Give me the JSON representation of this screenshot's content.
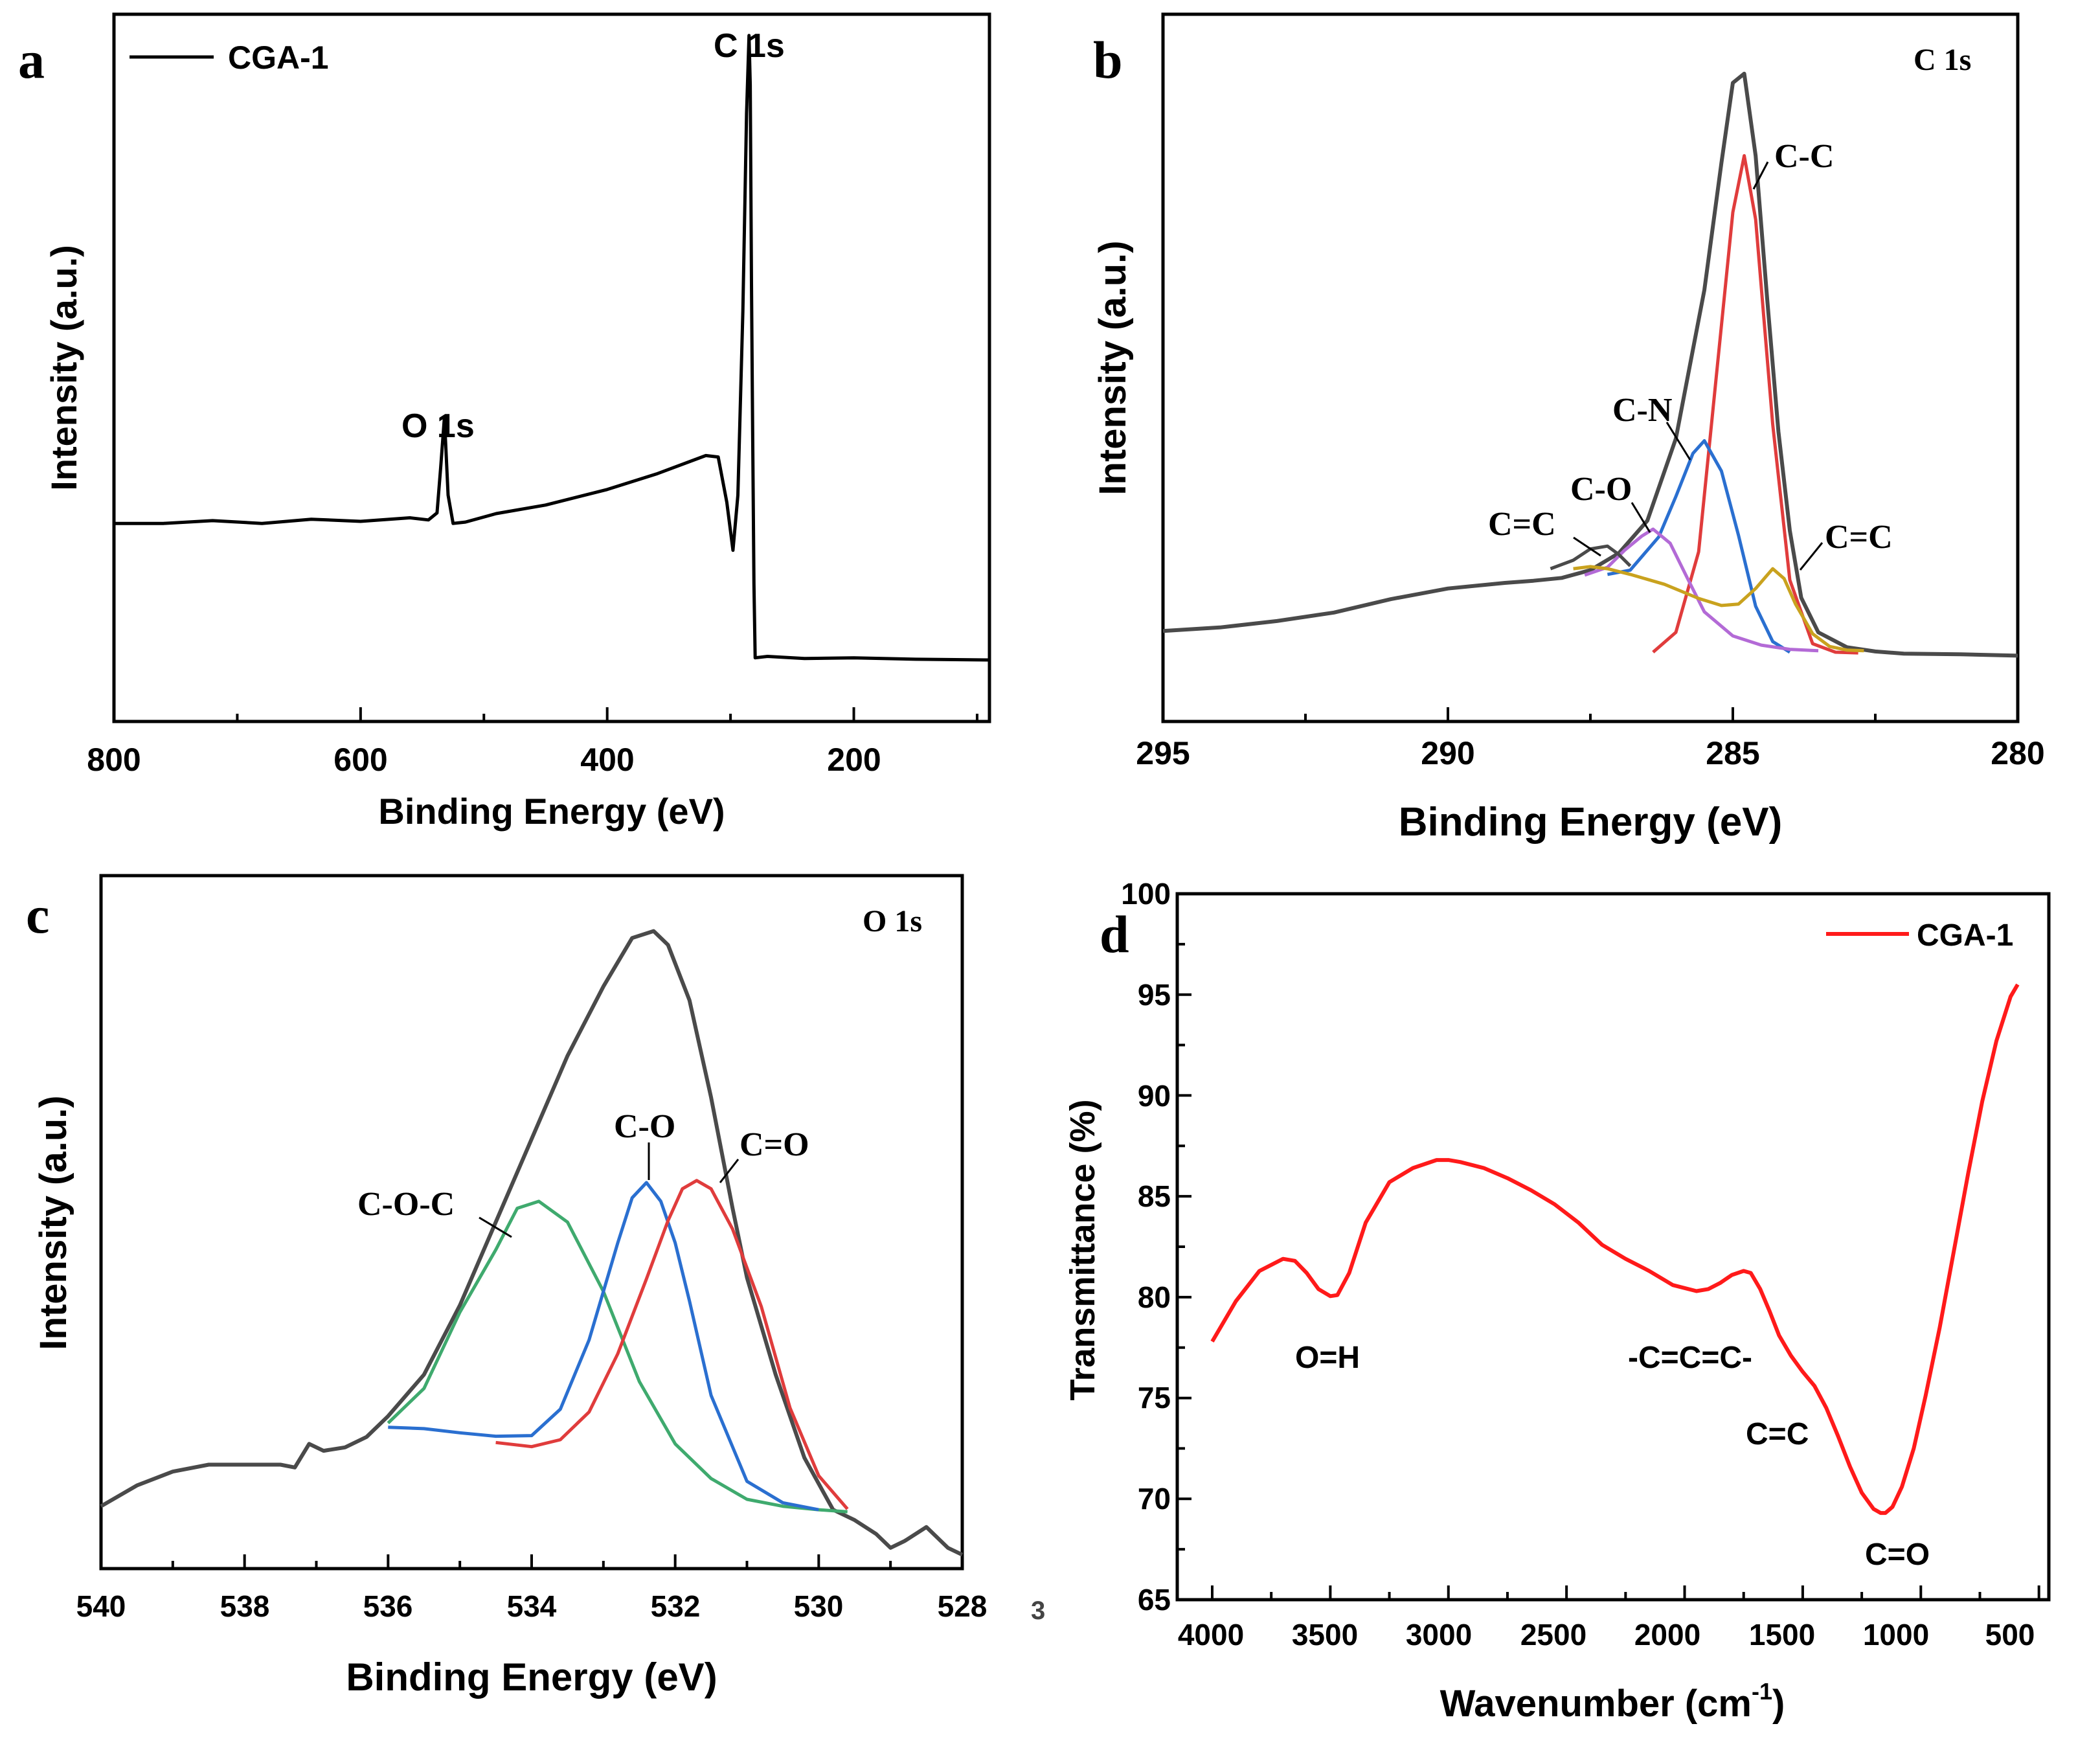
{
  "colors": {
    "axis": "#000000",
    "envelope": "#4a4a4a",
    "red": "#e03c3c",
    "blue": "#2a6fd0",
    "purple": "#b36ad6",
    "gold": "#c9a21e",
    "green": "#3faa6e",
    "ftir": "#ff1a1a"
  },
  "chart_data": [
    {
      "panel": "a",
      "type": "line",
      "title": "",
      "xlabel": "Binding Energy (eV)",
      "ylabel": "Intensity (a.u.)",
      "xlim": [
        800,
        90
      ],
      "ylim": [
        0,
        100
      ],
      "xticks": [
        800,
        600,
        400,
        200
      ],
      "xtick_labels": [
        "800",
        "600",
        "400",
        "200"
      ],
      "legend": "CGA-1",
      "annotations": [
        {
          "text": "O 1s",
          "x": 532
        },
        {
          "text": "C 1s",
          "x": 284
        }
      ],
      "series": [
        {
          "name": "CGA-1",
          "color_key": "axis",
          "x": [
            800,
            760,
            720,
            680,
            640,
            600,
            560,
            545,
            538,
            535,
            532,
            529,
            525,
            515,
            490,
            450,
            400,
            360,
            320,
            310,
            303,
            298,
            294,
            290,
            287,
            285,
            284,
            283,
            282,
            281,
            280,
            270,
            240,
            200,
            150,
            90
          ],
          "y": [
            28,
            28,
            28.4,
            28,
            28.6,
            28.3,
            28.8,
            28.5,
            29.5,
            36,
            43,
            32,
            28,
            28.2,
            29.4,
            30.6,
            32.8,
            35,
            37.6,
            37.4,
            31,
            24.2,
            32,
            58,
            86,
            97,
            90,
            62,
            40,
            19.5,
            9,
            9.2,
            8.9,
            9,
            8.8,
            8.7
          ]
        }
      ]
    },
    {
      "panel": "b",
      "type": "line",
      "title": "C 1s",
      "xlabel": "Binding Energy (eV)",
      "ylabel": "Intensity (a.u.)",
      "xlim": [
        295,
        280
      ],
      "ylim": [
        0,
        100
      ],
      "xticks": [
        295,
        290,
        285,
        280
      ],
      "xtick_labels": [
        "295",
        "290",
        "285",
        "280"
      ],
      "annotations": [
        {
          "text": "C-C",
          "x": 284.8
        },
        {
          "text": "C-N",
          "x": 285.5
        },
        {
          "text": "C-O",
          "x": 286.4
        },
        {
          "text": "C=C",
          "x": 287.5
        },
        {
          "text": "C=C",
          "x": 284.2
        }
      ],
      "series": [
        {
          "name": "Envelope",
          "color_key": "envelope",
          "x": [
            295,
            294,
            293,
            292,
            291,
            290,
            289,
            288.5,
            288,
            287.5,
            287,
            286.5,
            286,
            285.5,
            285.2,
            285,
            284.8,
            284.6,
            284.4,
            284.2,
            284,
            283.8,
            283.5,
            283,
            282.5,
            282,
            281,
            280
          ],
          "y": [
            12.8,
            13.3,
            14.2,
            15.4,
            17.3,
            18.8,
            19.6,
            19.9,
            20.3,
            21.4,
            23.8,
            28.4,
            40,
            61,
            79,
            90.3,
            91.6,
            80,
            60,
            41,
            27,
            17.5,
            12.6,
            10.5,
            9.9,
            9.6,
            9.5,
            9.3
          ]
        },
        {
          "name": "C-C",
          "color_key": "red",
          "x": [
            286.4,
            286.0,
            285.6,
            285.3,
            285.0,
            284.8,
            284.6,
            284.3,
            284.0,
            283.6,
            283.2,
            282.8
          ],
          "y": [
            9.8,
            12.6,
            24,
            48,
            72,
            80,
            71,
            42,
            20,
            11,
            9.8,
            9.7
          ]
        },
        {
          "name": "C-N",
          "color_key": "blue",
          "x": [
            287.2,
            286.8,
            286.3,
            286.0,
            285.7,
            285.5,
            285.2,
            284.9,
            284.6,
            284.3,
            284.0
          ],
          "y": [
            20.8,
            21.4,
            26.1,
            31.8,
            37.9,
            39.7,
            35.4,
            26.3,
            16.3,
            11.3,
            9.8
          ]
        },
        {
          "name": "C-O",
          "color_key": "purple",
          "x": [
            287.6,
            287.2,
            286.9,
            286.6,
            286.4,
            286.1,
            285.8,
            285.5,
            285.0,
            284.5,
            284.0,
            283.5
          ],
          "y": [
            20.7,
            21.8,
            24.2,
            26.2,
            27.2,
            25.2,
            20.3,
            15.5,
            12.1,
            10.8,
            10.2,
            10
          ]
        },
        {
          "name": "C=C (sp2)",
          "color_key": "gold",
          "x": [
            287.8,
            287.5,
            287.2,
            286.8,
            286.2,
            285.6,
            285.2,
            284.9,
            284.6,
            284.3,
            284.1,
            283.9,
            283.6,
            283.3,
            283.0,
            282.7
          ],
          "y": [
            21.6,
            21.9,
            21.6,
            20.8,
            19.4,
            17.4,
            16.4,
            16.6,
            18.8,
            21.6,
            20.2,
            16.6,
            12.4,
            10.6,
            10.1,
            10
          ]
        },
        {
          "name": "C=C (shoulder)",
          "color_key": "envelope",
          "x": [
            288.2,
            287.8,
            287.5,
            287.2,
            287.0,
            286.8
          ],
          "y": [
            21.6,
            22.8,
            24.4,
            24.8,
            23.6,
            22
          ]
        }
      ]
    },
    {
      "panel": "c",
      "type": "line",
      "title": "O 1s",
      "xlabel": "Binding Energy (eV)",
      "ylabel": "Intensity (a.u.)",
      "xlim": [
        540,
        528
      ],
      "ylim": [
        0,
        100
      ],
      "xticks": [
        540,
        538,
        536,
        534,
        532,
        530,
        528
      ],
      "xtick_labels": [
        "540",
        "538",
        "536",
        "534",
        "532",
        "530",
        "528"
      ],
      "annotations": [
        {
          "text": "C-O-C",
          "x": 533.9
        },
        {
          "text": "C-O",
          "x": 532.4
        },
        {
          "text": "C=O",
          "x": 531.7
        }
      ],
      "series": [
        {
          "name": "Envelope",
          "color_key": "envelope",
          "x": [
            540,
            539.5,
            539,
            538.5,
            538,
            537.5,
            537.3,
            537.1,
            536.9,
            536.6,
            536.3,
            536,
            535.5,
            535,
            534.5,
            534,
            533.5,
            533,
            532.6,
            532.3,
            532.1,
            531.8,
            531.5,
            531.2,
            531,
            530.6,
            530.2,
            529.8,
            529.5,
            529.2,
            529,
            528.8,
            528.5,
            528.2,
            528
          ],
          "y": [
            9,
            12,
            14,
            15,
            15,
            15,
            14.6,
            18,
            17,
            17.5,
            19,
            22,
            28,
            38,
            50,
            62,
            74,
            84,
            91,
            92,
            90,
            82,
            68,
            52,
            42,
            28,
            16,
            8.5,
            7,
            5,
            3,
            4,
            6,
            3,
            2
          ]
        },
        {
          "name": "C-O-C",
          "color_key": "green",
          "x": [
            536,
            535.5,
            535,
            534.5,
            534.2,
            533.9,
            533.5,
            533,
            532.5,
            532,
            531.5,
            531,
            530.5,
            530,
            529.6
          ],
          "y": [
            21,
            26,
            37,
            46,
            52,
            53,
            50,
            40,
            27,
            18,
            13,
            10,
            9,
            8.5,
            8.2
          ]
        },
        {
          "name": "C-O",
          "color_key": "blue",
          "x": [
            536,
            535.5,
            535,
            534.5,
            534,
            533.6,
            533.2,
            532.8,
            532.6,
            532.4,
            532.2,
            532,
            531.8,
            531.5,
            531,
            530.5,
            530
          ],
          "y": [
            20.4,
            20.2,
            19.6,
            19.1,
            19.2,
            23,
            33,
            47,
            53.5,
            55.7,
            53,
            47,
            38.6,
            25,
            12.6,
            9.5,
            8.5
          ]
        },
        {
          "name": "C=O",
          "color_key": "red",
          "x": [
            534.5,
            534,
            533.6,
            533.2,
            532.8,
            532.4,
            532.1,
            531.9,
            531.7,
            531.5,
            531.2,
            530.8,
            530.4,
            530.0,
            529.6
          ],
          "y": [
            18.2,
            17.6,
            18.6,
            22.6,
            31,
            41.8,
            50.2,
            54.8,
            56,
            54.8,
            49,
            37.8,
            23.2,
            13.4,
            8.6
          ]
        }
      ]
    },
    {
      "panel": "d",
      "type": "line",
      "title": "",
      "xlabel": "Wavenumber (cm-1)",
      "xlabel_main": "Wavenumber (cm",
      "xlabel_sup": "-1",
      "xlabel_close": ")",
      "ylabel": "Transmittance (%)",
      "xlim": [
        4000,
        500
      ],
      "ylim": [
        65,
        100
      ],
      "xticks": [
        4000,
        3500,
        3000,
        2500,
        2000,
        1500,
        1000,
        500
      ],
      "xtick_labels": [
        "4000",
        "3500",
        "3000",
        "2500",
        "2000",
        "1500",
        "1000",
        "500"
      ],
      "yticks": [
        65,
        70,
        75,
        80,
        85,
        90,
        95,
        100
      ],
      "ytick_labels": [
        "65",
        "70",
        "75",
        "80",
        "85",
        "90",
        "95",
        "100"
      ],
      "legend": "CGA-1",
      "annotations": [
        {
          "text": "O=H",
          "x": 3450
        },
        {
          "text": "-C=C=C-",
          "x": 1950
        },
        {
          "text": "C=C",
          "x": 1520
        },
        {
          "text": "C=O",
          "x": 1150
        }
      ],
      "series": [
        {
          "name": "CGA-1",
          "color_key": "ftir",
          "x": [
            4000,
            3900,
            3800,
            3700,
            3650,
            3600,
            3550,
            3500,
            3470,
            3420,
            3350,
            3250,
            3150,
            3050,
            3000,
            2950,
            2850,
            2750,
            2650,
            2550,
            2450,
            2350,
            2250,
            2150,
            2050,
            1950,
            1900,
            1850,
            1800,
            1750,
            1720,
            1680,
            1640,
            1600,
            1550,
            1500,
            1450,
            1400,
            1350,
            1300,
            1250,
            1200,
            1170,
            1150,
            1120,
            1080,
            1030,
            980,
            920,
            860,
            800,
            740,
            680,
            620,
            590
          ],
          "y": [
            77.8,
            79.8,
            81.3,
            81.9,
            81.8,
            81.2,
            80.4,
            80.05,
            80.1,
            81.2,
            83.7,
            85.7,
            86.4,
            86.8,
            86.8,
            86.7,
            86.4,
            85.9,
            85.3,
            84.6,
            83.7,
            82.6,
            81.9,
            81.3,
            80.6,
            80.3,
            80.4,
            80.7,
            81.1,
            81.3,
            81.2,
            80.4,
            79.3,
            78.1,
            77.1,
            76.3,
            75.6,
            74.5,
            73.1,
            71.6,
            70.3,
            69.5,
            69.3,
            69.3,
            69.6,
            70.6,
            72.5,
            75.1,
            78.5,
            82.3,
            86.1,
            89.7,
            92.7,
            94.9,
            95.5
          ]
        }
      ]
    }
  ],
  "panel_labels": [
    "a",
    "b",
    "c",
    "d"
  ],
  "stray_mark": "3"
}
